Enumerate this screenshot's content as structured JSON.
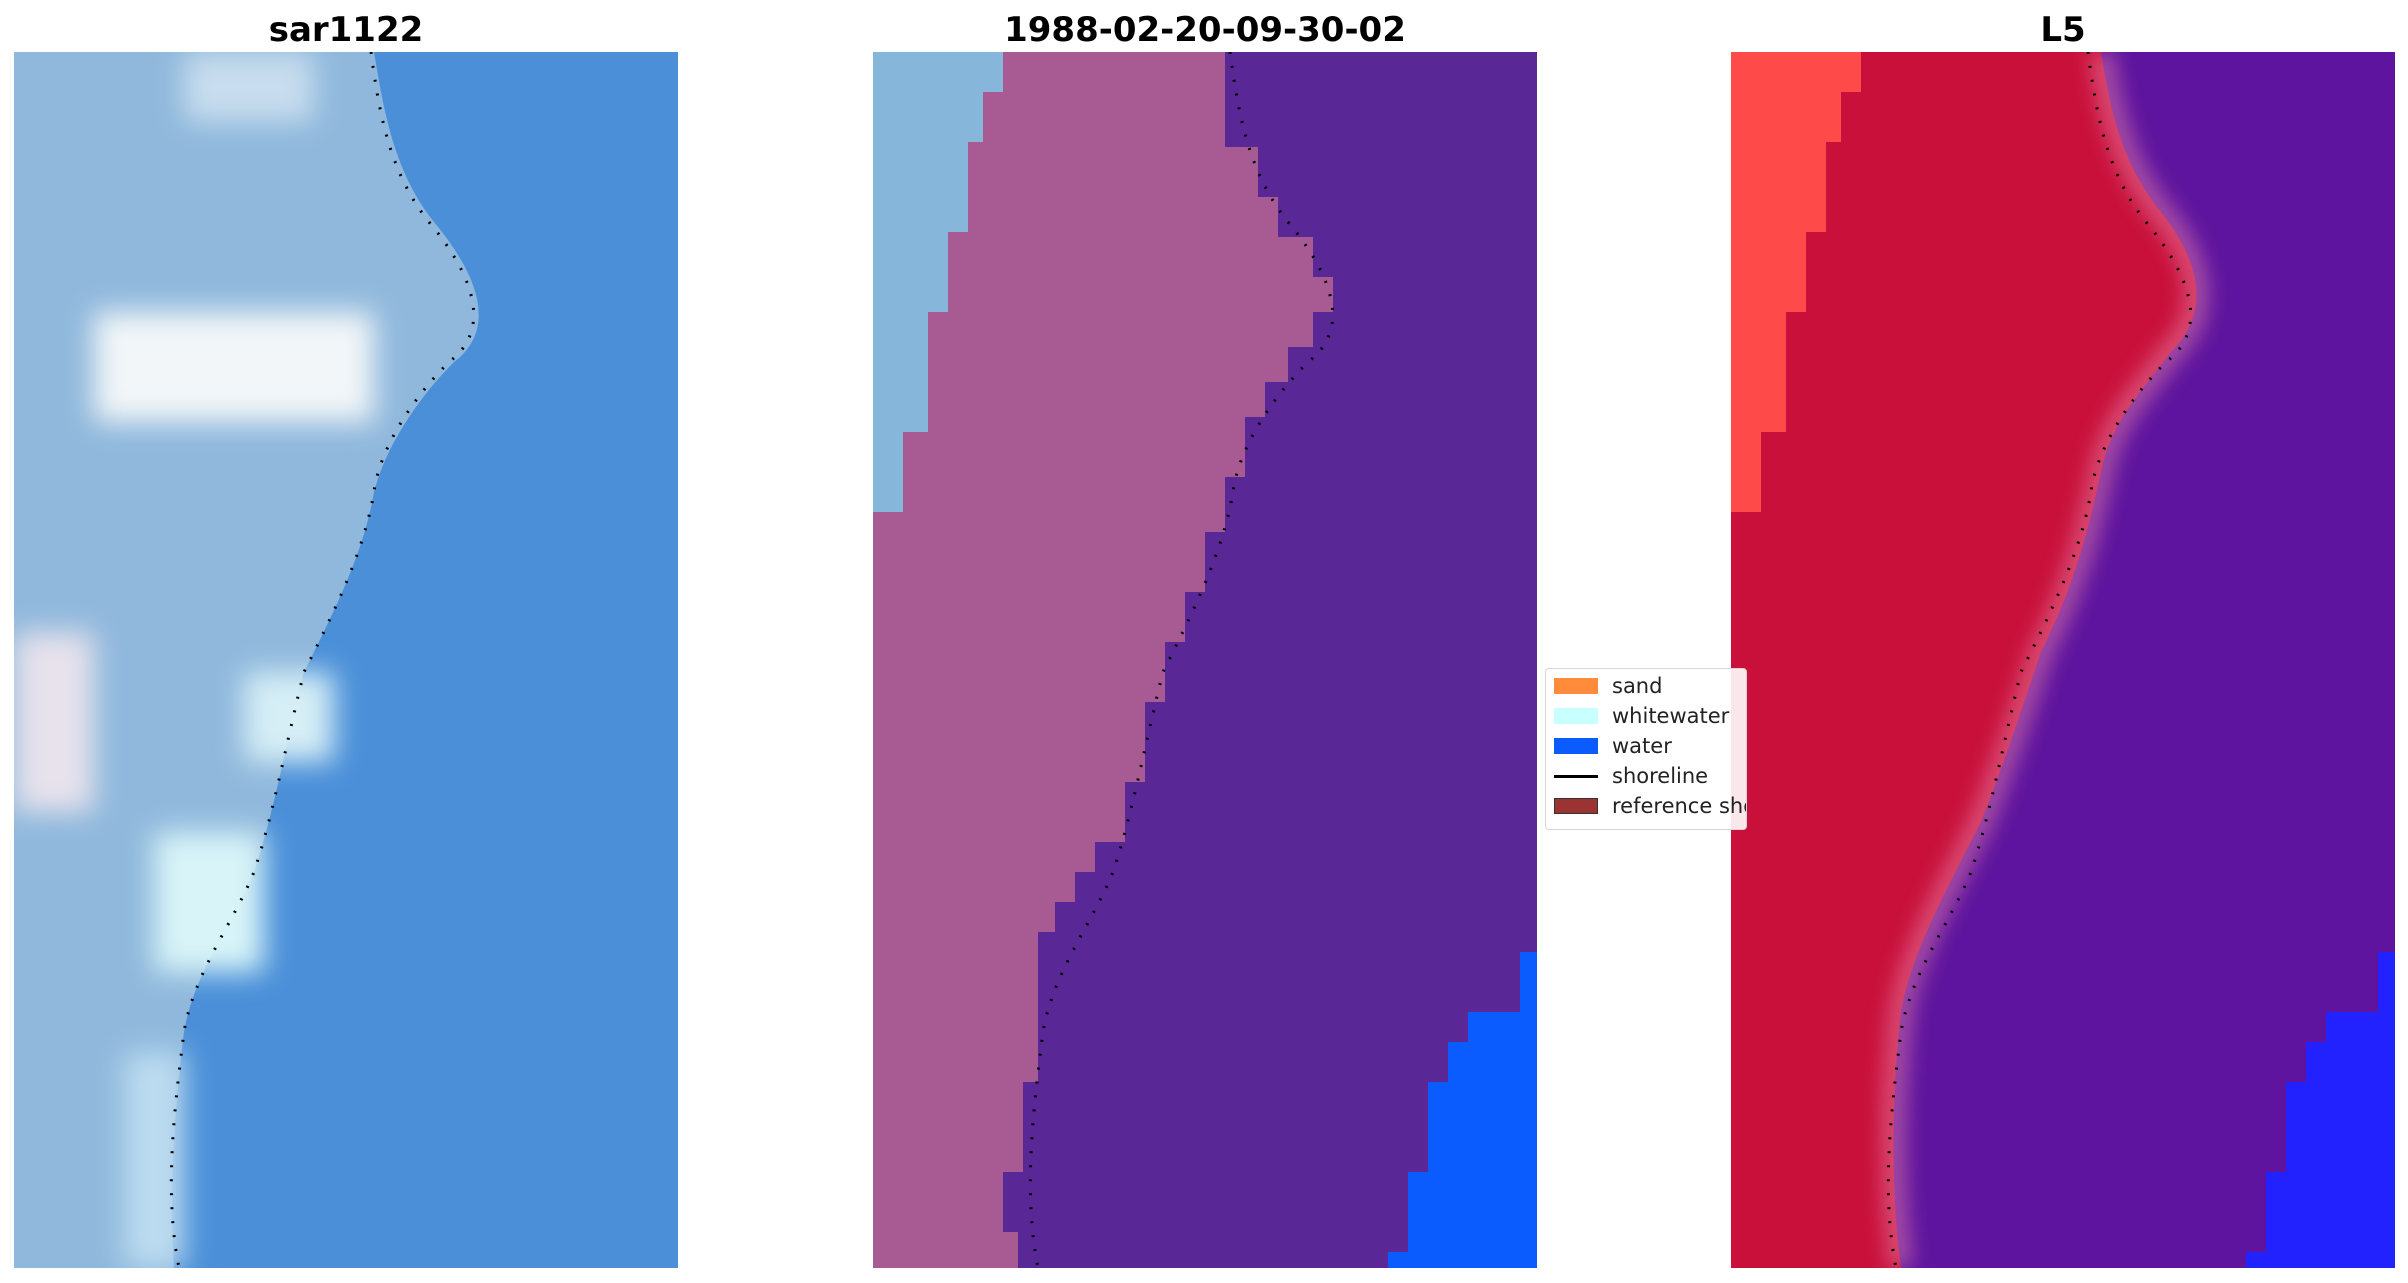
{
  "panels": [
    {
      "title": "sar1122"
    },
    {
      "title": "1988-02-20-09-30-02"
    },
    {
      "title": "L5"
    }
  ],
  "legend": {
    "items": [
      {
        "label": "sand",
        "color": "#ff8c3a",
        "kind": "patch"
      },
      {
        "label": "whitewater",
        "color": "#c8ffff",
        "kind": "patch"
      },
      {
        "label": "water",
        "color": "#0a5cff",
        "kind": "patch"
      },
      {
        "label": "shoreline",
        "color": "#000000",
        "kind": "line"
      },
      {
        "label": "reference shoreline",
        "color": "#9c3333",
        "kind": "patch"
      }
    ]
  },
  "colors": {
    "water_rgb": "#4a8fd8",
    "land_rgb": "#8fb8dc",
    "whitewater_rgb": "#f2f6f8",
    "sand_class": "#a85a92",
    "water_class": "#5a2796",
    "deep_water_class": "#0a5cff",
    "whitewater_class": "#86b6da",
    "land_index": "#c8103a",
    "beach_index": "#ff4a4a",
    "water_index": "#5e149e",
    "deep_water_index": "#2222ff"
  }
}
